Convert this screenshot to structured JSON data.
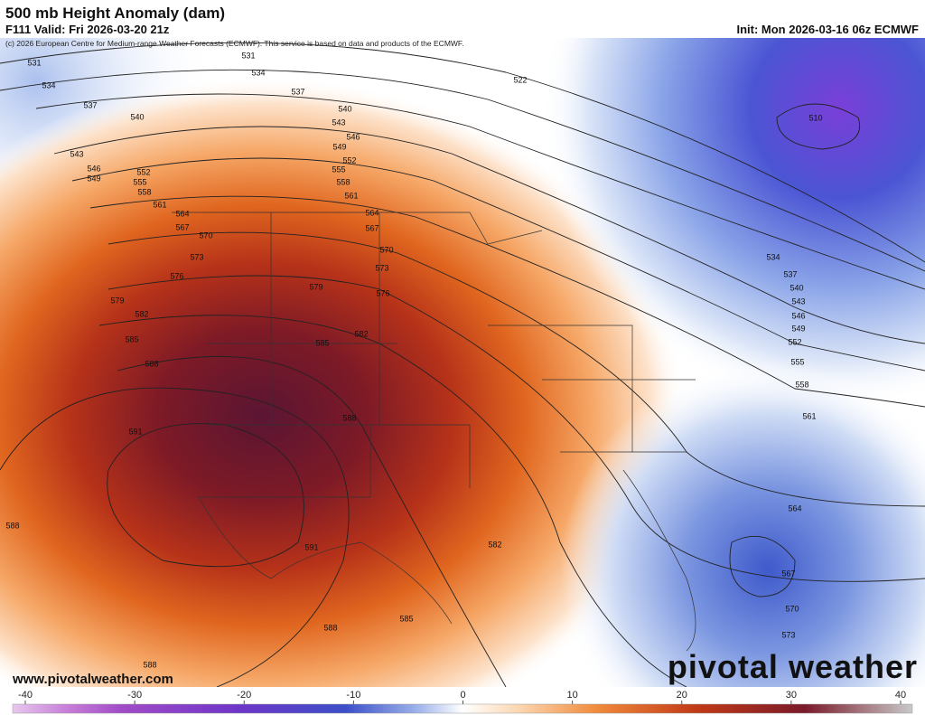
{
  "header": {
    "title": "500 mb Height Anomaly (dam)",
    "valid": "F111 Valid: Fri 2026-03-20 21z",
    "init": "Init: Mon 2026-03-16 06z ECMWF",
    "copyright": "(c) 2026 European Centre for Medium-range Weather Forecasts (ECMWF). This service is based on data and products of the ECMWF."
  },
  "contour_labels": [
    531,
    534,
    537,
    540,
    543,
    546,
    549,
    552,
    555,
    558,
    561,
    564,
    567,
    570,
    573,
    576,
    579,
    582,
    585,
    588,
    591,
    588,
    588,
    531,
    534,
    537,
    540,
    543,
    546,
    549,
    552,
    555,
    558,
    561,
    564,
    567,
    570,
    573,
    576,
    579,
    582,
    585,
    588,
    591,
    588,
    585,
    582,
    522,
    510,
    534,
    537,
    540,
    543,
    546,
    549,
    552,
    555,
    558,
    561,
    564,
    567,
    570,
    573
  ],
  "colorbar": {
    "ticks": [
      -40,
      -30,
      -20,
      -10,
      0,
      10,
      20,
      30,
      40
    ]
  },
  "footer": {
    "website": "www.pivotalweather.com",
    "logo": "pivotal weather"
  }
}
